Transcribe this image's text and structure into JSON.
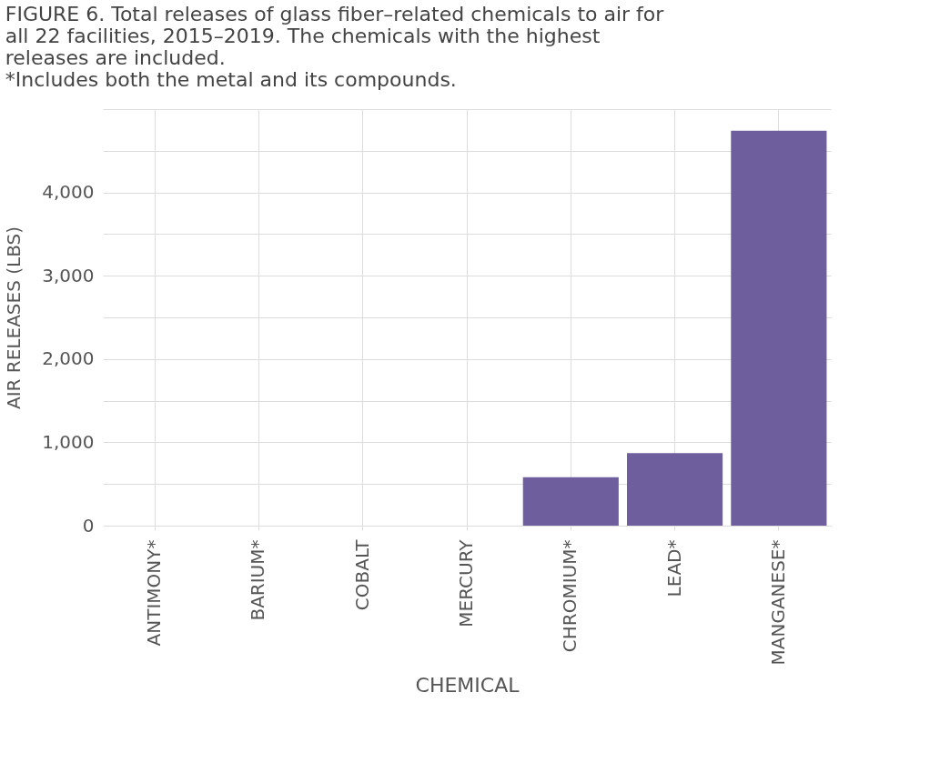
{
  "chart_data": {
    "type": "bar",
    "title": "FIGURE 6. Total releases of glass fiber–related chemicals to air for all 22 facilities, 2015–2019. The chemicals with the highest releases are included.\n*Includes both the metal and its compounds.",
    "xlabel": "CHEMICAL",
    "ylabel": "AIR RELEASES (LBS)",
    "categories": [
      "ANTIMONY*",
      "BARIUM*",
      "COBALT",
      "MERCURY",
      "CHROMIUM*",
      "LEAD*",
      "MANGANESE*"
    ],
    "values": [
      0,
      0,
      0,
      0,
      580,
      870,
      4740
    ],
    "color": "#6e5e9e",
    "ylim": [
      0,
      5000
    ],
    "yticks": [
      0,
      {
        "value": 500,
        "label": null
      },
      {
        "value": 1000,
        "label": "1,000"
      },
      {
        "value": 1500,
        "label": null
      },
      {
        "value": 2000,
        "label": "2,000"
      },
      {
        "value": 2500,
        "label": null
      },
      {
        "value": 3000,
        "label": "3,000"
      },
      {
        "value": 3500,
        "label": null
      },
      {
        "value": 4000,
        "label": "4,000"
      },
      {
        "value": 4500,
        "label": null
      },
      {
        "value": 5000,
        "label": null
      }
    ],
    "grid": true
  }
}
